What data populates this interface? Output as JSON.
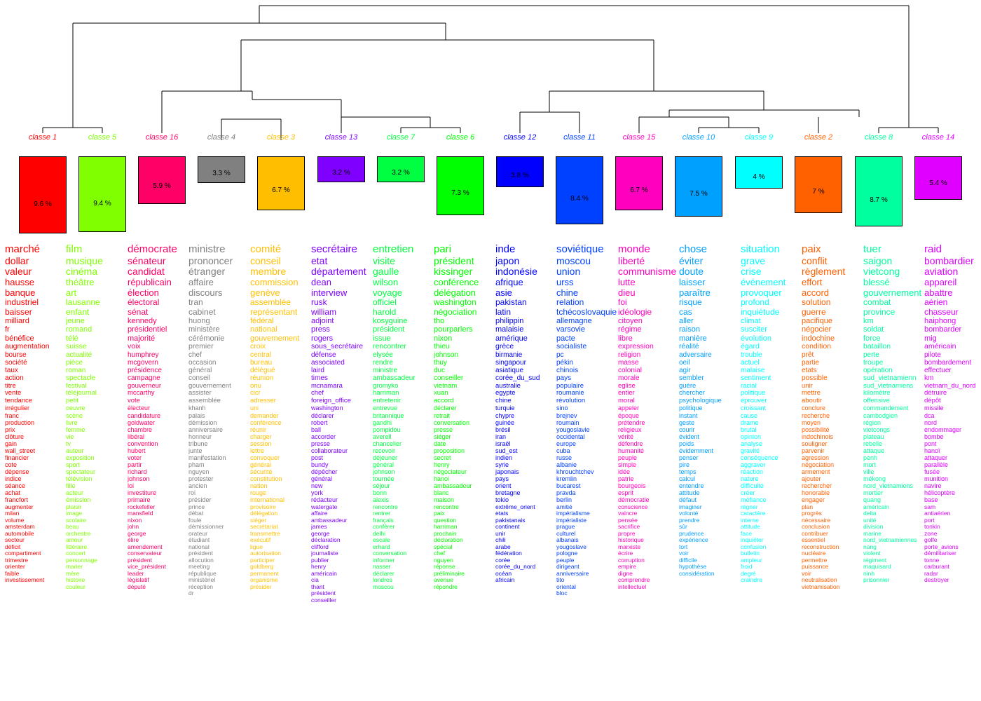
{
  "classes": [
    {
      "label": "classe  1",
      "color": "#ff0000",
      "pct": "9.6 %",
      "value": 9.6,
      "words": [
        "marché",
        "dollar",
        "valeur",
        "hausse",
        "banque",
        "industriel",
        "baisser",
        "milliard",
        "fr",
        "bénéfice",
        "augmentation",
        "bourse",
        "société",
        "taux",
        "action",
        "titre",
        "vente",
        "tendance",
        "irrégulier",
        "franc",
        "production",
        "prix",
        "clôture",
        "gain",
        "wall_street",
        "financier",
        "cote",
        "dépense",
        "indice",
        "séance",
        "achat",
        "francfort",
        "augmenter",
        "milan",
        "volume",
        "amsterdam",
        "automobile",
        "secteur",
        "déficit",
        "compartiment",
        "trimestre",
        "orienter",
        "faible",
        "investissement"
      ]
    },
    {
      "label": "classe  5",
      "color": "#7fff00",
      "pct": "9.4 %",
      "value": 9.4,
      "words": [
        "film",
        "musique",
        "cinéma",
        "théâtre",
        "art",
        "lausanne",
        "enfant",
        "jeune",
        "romand",
        "télé",
        "suisse",
        "actualité",
        "pièce",
        "roman",
        "spectacle",
        "festival",
        "téléjournal",
        "petit",
        "oeuvre",
        "scène",
        "livre",
        "femme",
        "vie",
        "tv",
        "auteur",
        "exposition",
        "sport",
        "spectateur",
        "télévision",
        "fille",
        "acteur",
        "émission",
        "plaisir",
        "image",
        "scolaire",
        "beau",
        "orchestre",
        "amour",
        "littéraire",
        "concert",
        "personnage",
        "marier",
        "mère",
        "histoire",
        "couleur"
      ]
    },
    {
      "label": "classe  16",
      "color": "#ff0066",
      "pct": "5.9 %",
      "value": 5.9,
      "words": [
        "démocrate",
        "sénateur",
        "candidat",
        "républicain",
        "élection",
        "électoral",
        "sénat",
        "kennedy",
        "présidentiel",
        "majorité",
        "voix",
        "humphrey",
        "mcgovern",
        "présidence",
        "campagne",
        "gouverneur",
        "mccarthy",
        "vote",
        "électeur",
        "candidature",
        "goldwater",
        "chambre",
        "libéral",
        "convention",
        "hubert",
        "voter",
        "partir",
        "richard",
        "johnson",
        "loi",
        "investiture",
        "primaire",
        "rockefeller",
        "mansfield",
        "nixon",
        "john",
        "george",
        "élire",
        "amendement",
        "conservateur",
        "président",
        "vice_président",
        "leader",
        "législatif",
        "député"
      ]
    },
    {
      "label": "classe  4",
      "color": "#808080",
      "pct": "3.3 %",
      "value": 3.3,
      "words": [
        "ministre",
        "prononcer",
        "étranger",
        "affaire",
        "discours",
        "tran",
        "cabinet",
        "huong",
        "ministère",
        "cérémonie",
        "premier",
        "chef",
        "occasion",
        "général",
        "conseil",
        "gouvernement",
        "assister",
        "assemblée",
        "khanh",
        "palais",
        "démission",
        "anniversaire",
        "honneur",
        "tribune",
        "junte",
        "manifestation",
        "pham",
        "nguyen",
        "protester",
        "ancien",
        "roi",
        "présider",
        "prince",
        "débat",
        "foule",
        "démissionner",
        "orateur",
        "étudiant",
        "national",
        "président",
        "allocution",
        "meeting",
        "république",
        "ministériel",
        "réception",
        "dr"
      ]
    },
    {
      "label": "classe  3",
      "color": "#ffbf00",
      "pct": "6.7 %",
      "value": 6.7,
      "words": [
        "comité",
        "conseil",
        "membre",
        "commission",
        "genève",
        "assemblée",
        "représentant",
        "fédéral",
        "national",
        "gouvernement",
        "croix",
        "central",
        "bureau",
        "délégué",
        "réunion",
        "onu",
        "cicr",
        "adresser",
        "uni",
        "demander",
        "conférence",
        "réunir",
        "charger",
        "session",
        "lettre",
        "convoquer",
        "général",
        "sécurité",
        "constitution",
        "nation",
        "rouge",
        "international",
        "provisoire",
        "délégation",
        "siéger",
        "secrétariat",
        "transmettre",
        "exécutif",
        "ligue",
        "autorisation",
        "participer",
        "goldberg",
        "permanent",
        "organisme",
        "présider"
      ]
    },
    {
      "label": "classe  13",
      "color": "#7f00ff",
      "pct": "3.2 %",
      "value": 3.2,
      "words": [
        "secrétaire",
        "etat",
        "département",
        "dean",
        "interview",
        "rusk",
        "william",
        "adjoint",
        "press",
        "rogers",
        "sous_secrétaire",
        "défense",
        "associated",
        "laird",
        "times",
        "mcnamara",
        "chef",
        "foreign_office",
        "washington",
        "déclarer",
        "robert",
        "ball",
        "accorder",
        "presse",
        "collaborateur",
        "post",
        "bundy",
        "dépêcher",
        "général",
        "new",
        "york",
        "rédacteur",
        "watergate",
        "affaire",
        "ambassadeur",
        "james",
        "george",
        "déclaration",
        "clifford",
        "journaliste",
        "publier",
        "henry",
        "américain",
        "cia",
        "thant",
        "président",
        "conseiller"
      ]
    },
    {
      "label": "classe  7",
      "color": "#00ff40",
      "pct": "3.2 %",
      "value": 3.2,
      "words": [
        "entretien",
        "visite",
        "gaulle",
        "wilson",
        "voyage",
        "officiel",
        "harold",
        "kosyguine",
        "président",
        "issue",
        "rencontrer",
        "elysée",
        "rendre",
        "ministre",
        "ambassadeur",
        "gromyko",
        "harriman",
        "entretenir",
        "entrevue",
        "britannique",
        "gandhi",
        "pompidou",
        "averell",
        "chancelier",
        "recevoir",
        "déjeuner",
        "général",
        "johnson",
        "tournée",
        "séjour",
        "bonn",
        "alexis",
        "rencontre",
        "rentrer",
        "français",
        "conférer",
        "delhi",
        "escale",
        "erhard",
        "conversation",
        "informer",
        "nasser",
        "déclarer",
        "londres",
        "moscou"
      ]
    },
    {
      "label": "classe  6",
      "color": "#00ff00",
      "pct": "7.3 %",
      "value": 7.3,
      "words": [
        "pari",
        "président",
        "kissinger",
        "conférence",
        "délégation",
        "washington",
        "négociation",
        "tho",
        "pourparlers",
        "nixon",
        "thieu",
        "johnson",
        "thuy",
        "duc",
        "conseiller",
        "vietnam",
        "xuan",
        "accord",
        "déclarer",
        "retrait",
        "conversation",
        "presse",
        "siéger",
        "date",
        "proposition",
        "secret",
        "henry",
        "négociateur",
        "hanoi",
        "ambassadeur",
        "blanc",
        "maison",
        "rencontre",
        "paix",
        "question",
        "harriman",
        "prochain",
        "déclaration",
        "spécial",
        "chef",
        "nguyen",
        "réponse",
        "préliminaire",
        "avenue",
        "répondre"
      ]
    },
    {
      "label": "classe  12",
      "color": "#0000ff",
      "pct": "3.8 %",
      "value": 3.8,
      "words": [
        "inde",
        "japon",
        "indonésie",
        "afrique",
        "asie",
        "pakistan",
        "latin",
        "philippin",
        "malaisie",
        "amérique",
        "grèce",
        "birmanie",
        "singapour",
        "asiatique",
        "corée_du_sud",
        "australie",
        "egypte",
        "chine",
        "turquie",
        "chypre",
        "guinée",
        "brésil",
        "iran",
        "israël",
        "sud_est",
        "indien",
        "syrie",
        "japonais",
        "pays",
        "orient",
        "bretagne",
        "tokio",
        "extrême_orient",
        "etats",
        "pakistanais",
        "continent",
        "unir",
        "chili",
        "arabe",
        "fédération",
        "corée",
        "corée_du_nord",
        "océan",
        "africain"
      ]
    },
    {
      "label": "classe  11",
      "color": "#0040ff",
      "pct": "8.4 %",
      "value": 8.4,
      "words": [
        "soviétique",
        "moscou",
        "union",
        "urss",
        "chine",
        "relation",
        "tchécoslovaquie",
        "allemagne",
        "varsovie",
        "pacte",
        "socialiste",
        "pc",
        "pékin",
        "chinois",
        "pays",
        "populaire",
        "roumanie",
        "révolution",
        "sino",
        "brejnev",
        "roumain",
        "yougoslavie",
        "occidental",
        "europe",
        "cuba",
        "russe",
        "albanie",
        "khrouchtchev",
        "kremlin",
        "bucarest",
        "pravda",
        "berlin",
        "amitié",
        "impérialisme",
        "impérialiste",
        "prague",
        "culturel",
        "albanais",
        "yougoslave",
        "pologne",
        "peuple",
        "dirigeant",
        "anniversaire",
        "tito",
        "oriental",
        "bloc"
      ]
    },
    {
      "label": "classe  15",
      "color": "#ff00bf",
      "pct": "6.7 %",
      "value": 6.7,
      "words": [
        "monde",
        "liberté",
        "communisme",
        "lutte",
        "dieu",
        "foi",
        "idéologie",
        "citoyen",
        "régime",
        "libre",
        "expression",
        "religion",
        "masse",
        "colonial",
        "morale",
        "eglise",
        "entier",
        "moral",
        "appeler",
        "époque",
        "prétendre",
        "religieux",
        "vérité",
        "défendre",
        "humanité",
        "peuple",
        "simple",
        "idée",
        "patrie",
        "bourgeois",
        "esprit",
        "démocratie",
        "conscience",
        "vaincre",
        "pensée",
        "sacrifice",
        "propre",
        "historique",
        "marxiste",
        "écrire",
        "corruption",
        "empire",
        "digne",
        "comprendre",
        "intellectuel"
      ]
    },
    {
      "label": "classe  10",
      "color": "#00a0ff",
      "pct": "7.5 %",
      "value": 7.5,
      "words": [
        "chose",
        "éviter",
        "doute",
        "laisser",
        "paraître",
        "risque",
        "cas",
        "aller",
        "raison",
        "manière",
        "réalité",
        "adversaire",
        "oeil",
        "agir",
        "sembler",
        "guère",
        "chercher",
        "psychologique",
        "politique",
        "instant",
        "geste",
        "courir",
        "évident",
        "poids",
        "évidemment",
        "penser",
        "pire",
        "temps",
        "calcul",
        "entendre",
        "attitude",
        "défaut",
        "imaginer",
        "volonté",
        "prendre",
        "sûr",
        "prudence",
        "expérience",
        "tort",
        "voir",
        "difficile",
        "hypothèse",
        "considération"
      ]
    },
    {
      "label": "classe  9",
      "color": "#00ffff",
      "pct": "4 %",
      "value": 4.0,
      "words": [
        "situation",
        "grave",
        "crise",
        "événement",
        "provoquer",
        "profond",
        "inquiétude",
        "climat",
        "susciter",
        "évolution",
        "égard",
        "trouble",
        "actuel",
        "malaise",
        "sentiment",
        "racial",
        "politique",
        "éprouver",
        "croissant",
        "cause",
        "drame",
        "brutal",
        "opinion",
        "analyse",
        "gravité",
        "conséquence",
        "aggraver",
        "réaction",
        "nature",
        "difficulté",
        "créer",
        "méfiance",
        "régner",
        "caractère",
        "interne",
        "attitude",
        "face",
        "inquiéter",
        "confusion",
        "bulletin",
        "ampleur",
        "froid",
        "degré",
        "craindre"
      ]
    },
    {
      "label": "classe  2",
      "color": "#ff6000",
      "pct": "7 %",
      "value": 7.0,
      "words": [
        "paix",
        "conflit",
        "règlement",
        "effort",
        "accord",
        "solution",
        "guerre",
        "pacifique",
        "négocier",
        "indochine",
        "condition",
        "prêt",
        "partie",
        "etats",
        "possible",
        "unir",
        "mettre",
        "aboutir",
        "conclure",
        "recherche",
        "moyen",
        "possibilité",
        "indochinois",
        "souligner",
        "parvenir",
        "agression",
        "négociation",
        "armement",
        "ajouter",
        "rechercher",
        "honorable",
        "engager",
        "plan",
        "progrès",
        "nécessaire",
        "conclusion",
        "contribuer",
        "essentiel",
        "reconstruction",
        "nucléaire",
        "permettre",
        "puissance",
        "voir",
        "neutralisation",
        "vietnamisation"
      ]
    },
    {
      "label": "classe  8",
      "color": "#00ff9f",
      "pct": "8.7 %",
      "value": 8.7,
      "words": [
        "tuer",
        "saigon",
        "vietcong",
        "blessé",
        "gouvernement",
        "combat",
        "province",
        "km",
        "soldat",
        "force",
        "bataillon",
        "perte",
        "troupe",
        "opération",
        "sud_vietnamienn",
        "sud_vietnamiens",
        "kilomètre",
        "offensive",
        "commandement",
        "cambodgien",
        "région",
        "vietcongs",
        "plateau",
        "rebelle",
        "attaque",
        "penh",
        "mort",
        "ville",
        "mékong",
        "nord_vietnamiens",
        "mortier",
        "quang",
        "américain",
        "delta",
        "unité",
        "division",
        "marine",
        "nord_vietnamiennes",
        "nang",
        "violent",
        "régiment",
        "maquisard",
        "ninh",
        "prisonnier"
      ]
    },
    {
      "label": "classe  14",
      "color": "#df00ff",
      "pct": "5.4 %",
      "value": 5.4,
      "words": [
        "raid",
        "bombardier",
        "aviation",
        "appareil",
        "abattre",
        "aérien",
        "chasseur",
        "haiphong",
        "bombarder",
        "mig",
        "américain",
        "pilote",
        "bombardement",
        "effectuer",
        "km",
        "vietnam_du_nord",
        "détruire",
        "dépôt",
        "missile",
        "dca",
        "nord",
        "endommager",
        "bombe",
        "pont",
        "hanoï",
        "attaquer",
        "parallèle",
        "fusée",
        "munition",
        "navire",
        "hélicoptère",
        "base",
        "sam",
        "antiaérien",
        "port",
        "tonkin",
        "zone",
        "golfe",
        "porte_avions",
        "démilitariser",
        "tonne",
        "carburant",
        "radar",
        "destroyer"
      ]
    }
  ]
}
